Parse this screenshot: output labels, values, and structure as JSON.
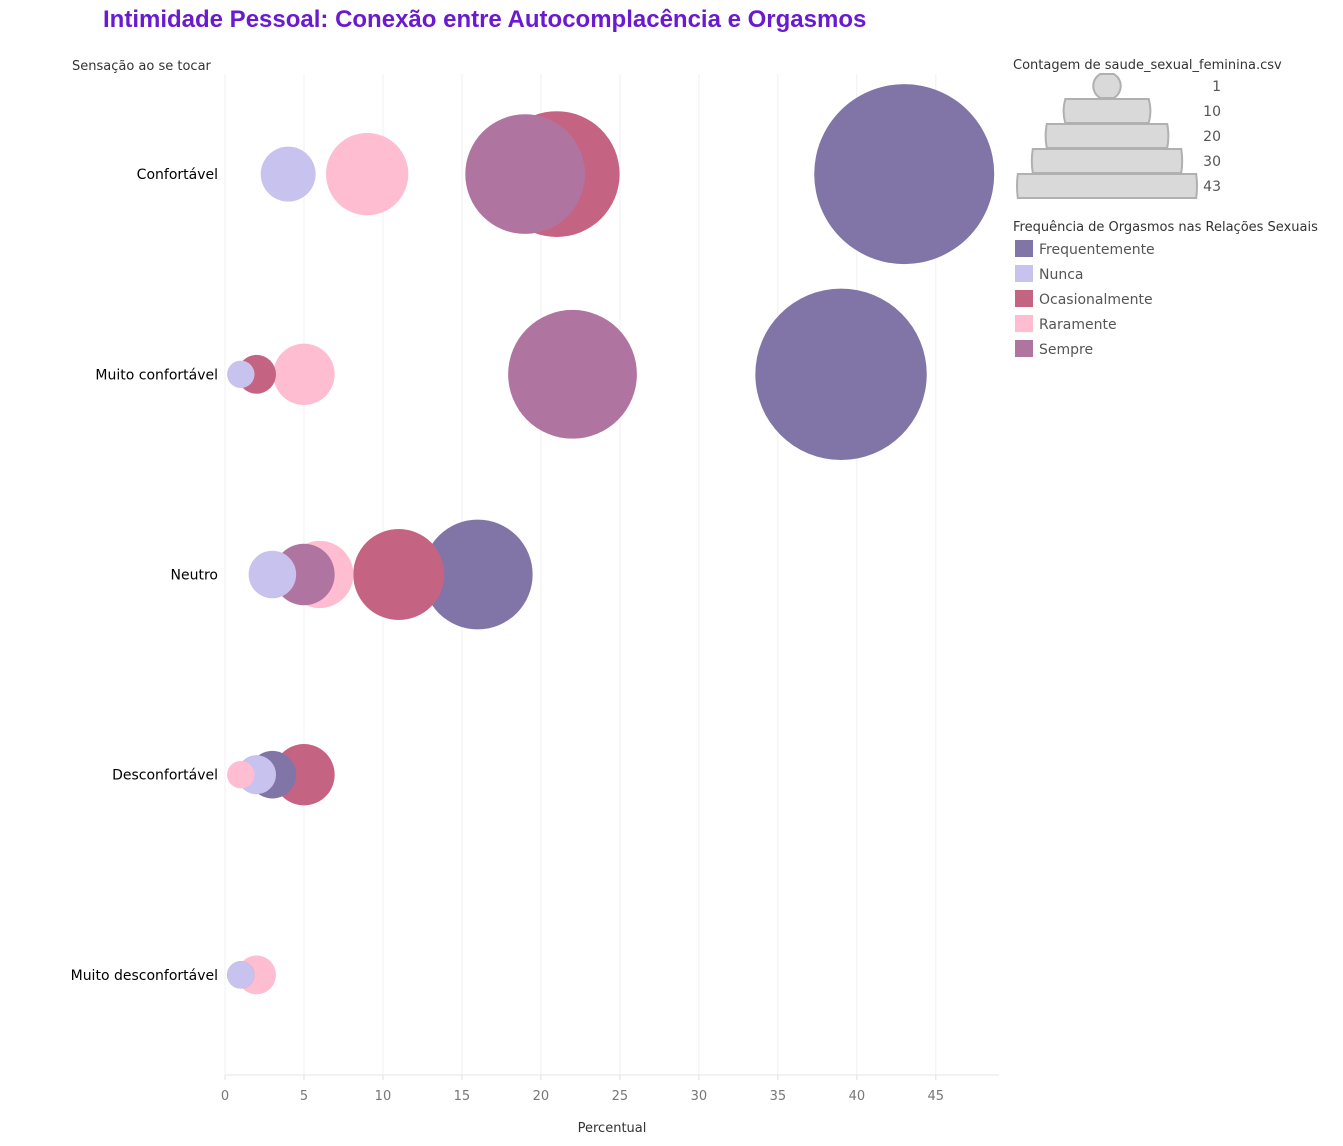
{
  "chart_data": {
    "type": "scatter",
    "title": "Intimidade Pessoal: Conexão entre Autocomplacência e Orgasmos",
    "ylabel": "Sensação ao se tocar",
    "xlabel": "Percentual",
    "x_ticks": [
      0,
      5,
      10,
      15,
      20,
      25,
      30,
      35,
      40,
      45
    ],
    "xlim": [
      0,
      49
    ],
    "grid": "vertical",
    "legend_placement": "right",
    "categories": [
      "Confortável",
      "Muito confortável",
      "Neutro",
      "Desconfortável",
      "Muito desconfortável"
    ],
    "size_legend": {
      "title": "Contagem de saude_sexual_feminina.csv",
      "values": [
        1,
        10,
        20,
        30,
        43
      ]
    },
    "color_legend_title": "Frequência de Orgasmos nas Relações Sexuais",
    "series": [
      {
        "name": "Frequentemente",
        "color": "#8175a8",
        "points": [
          {
            "category": "Confortável",
            "x": 43,
            "count": 43
          },
          {
            "category": "Muito confortável",
            "x": 39,
            "count": 39
          },
          {
            "category": "Neutro",
            "x": 16,
            "count": 16
          },
          {
            "category": "Desconfortável",
            "x": 3,
            "count": 3
          },
          {
            "category": "Muito desconfortável",
            "x": 1,
            "count": 1
          }
        ]
      },
      {
        "name": "Nunca",
        "color": "#c8c2ee",
        "points": [
          {
            "category": "Confortável",
            "x": 4,
            "count": 4
          },
          {
            "category": "Muito confortável",
            "x": 1,
            "count": 1
          },
          {
            "category": "Neutro",
            "x": 3,
            "count": 3
          },
          {
            "category": "Desconfortável",
            "x": 2,
            "count": 2
          },
          {
            "category": "Muito desconfortável",
            "x": 1,
            "count": 1
          }
        ]
      },
      {
        "name": "Ocasionalmente",
        "color": "#c56383",
        "points": [
          {
            "category": "Confortável",
            "x": 21,
            "count": 21
          },
          {
            "category": "Muito confortável",
            "x": 2,
            "count": 2
          },
          {
            "category": "Neutro",
            "x": 11,
            "count": 11
          },
          {
            "category": "Desconfortável",
            "x": 5,
            "count": 5
          }
        ]
      },
      {
        "name": "Raramente",
        "color": "#ffbdd2",
        "points": [
          {
            "category": "Confortável",
            "x": 9,
            "count": 9
          },
          {
            "category": "Muito confortável",
            "x": 5,
            "count": 5
          },
          {
            "category": "Neutro",
            "x": 6,
            "count": 6
          },
          {
            "category": "Desconfortável",
            "x": 1,
            "count": 1
          },
          {
            "category": "Muito desconfortável",
            "x": 2,
            "count": 2
          }
        ]
      },
      {
        "name": "Sempre",
        "color": "#b074a0",
        "points": [
          {
            "category": "Confortável",
            "x": 19,
            "count": 19
          },
          {
            "category": "Muito confortável",
            "x": 22,
            "count": 22
          },
          {
            "category": "Neutro",
            "x": 5,
            "count": 5
          },
          {
            "category": "Desconfortável",
            "x": 2,
            "count": 2
          }
        ]
      }
    ],
    "draw_order": [
      [
        "Frequentemente",
        "Confortável"
      ],
      [
        "Ocasionalmente",
        "Confortável"
      ],
      [
        "Sempre",
        "Confortável"
      ],
      [
        "Raramente",
        "Confortável"
      ],
      [
        "Nunca",
        "Confortável"
      ],
      [
        "Frequentemente",
        "Muito confortável"
      ],
      [
        "Sempre",
        "Muito confortável"
      ],
      [
        "Raramente",
        "Muito confortável"
      ],
      [
        "Ocasionalmente",
        "Muito confortável"
      ],
      [
        "Nunca",
        "Muito confortável"
      ],
      [
        "Frequentemente",
        "Neutro"
      ],
      [
        "Ocasionalmente",
        "Neutro"
      ],
      [
        "Raramente",
        "Neutro"
      ],
      [
        "Sempre",
        "Neutro"
      ],
      [
        "Nunca",
        "Neutro"
      ],
      [
        "Ocasionalmente",
        "Desconfortável"
      ],
      [
        "Frequentemente",
        "Desconfortável"
      ],
      [
        "Sempre",
        "Desconfortável"
      ],
      [
        "Nunca",
        "Desconfortável"
      ],
      [
        "Raramente",
        "Desconfortável"
      ],
      [
        "Raramente",
        "Muito desconfortável"
      ],
      [
        "Frequentemente",
        "Muito desconfortável"
      ],
      [
        "Nunca",
        "Muito desconfortável"
      ]
    ]
  }
}
